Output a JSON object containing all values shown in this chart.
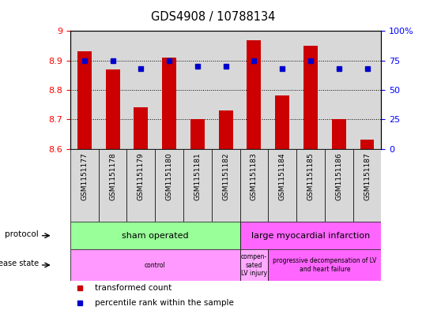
{
  "title": "GDS4908 / 10788134",
  "samples": [
    "GSM1151177",
    "GSM1151178",
    "GSM1151179",
    "GSM1151180",
    "GSM1151181",
    "GSM1151182",
    "GSM1151183",
    "GSM1151184",
    "GSM1151185",
    "GSM1151186",
    "GSM1151187"
  ],
  "transformed_counts": [
    8.93,
    8.87,
    8.74,
    8.91,
    8.7,
    8.73,
    8.97,
    8.78,
    8.95,
    8.7,
    8.63
  ],
  "percentile_ranks": [
    75,
    75,
    68,
    75,
    70,
    70,
    75,
    68,
    75,
    68,
    68
  ],
  "ylim_left": [
    8.6,
    9.0
  ],
  "ylim_right": [
    0,
    100
  ],
  "yticks_left": [
    8.6,
    8.7,
    8.8,
    8.9,
    9.0
  ],
  "ytick_labels_left": [
    "8.6",
    "8.7",
    "8.8",
    "8.9",
    "9"
  ],
  "yticks_right": [
    0,
    25,
    50,
    75,
    100
  ],
  "ytick_labels_right": [
    "0",
    "25",
    "50",
    "75",
    "100%"
  ],
  "bar_color": "#cc0000",
  "dot_color": "#0000cc",
  "plot_bg_color": "#d8d8d8",
  "protocol_groups": [
    {
      "label": "sham operated",
      "start": 0,
      "end": 5,
      "color": "#99ff99"
    },
    {
      "label": "large myocardial infarction",
      "start": 6,
      "end": 10,
      "color": "#ff66ff"
    }
  ],
  "disease_groups": [
    {
      "label": "control",
      "start": 0,
      "end": 5,
      "color": "#ff99ff"
    },
    {
      "label": "compen-\nsated\nLV injury",
      "start": 6,
      "end": 6,
      "color": "#ffaaff"
    },
    {
      "label": "progressive decompensation of LV\nand heart failure",
      "start": 7,
      "end": 10,
      "color": "#ff66ff"
    }
  ],
  "legend_items": [
    {
      "label": "transformed count",
      "color": "#cc0000"
    },
    {
      "label": "percentile rank within the sample",
      "color": "#0000cc"
    }
  ],
  "n_samples": 11,
  "bar_width": 0.5
}
